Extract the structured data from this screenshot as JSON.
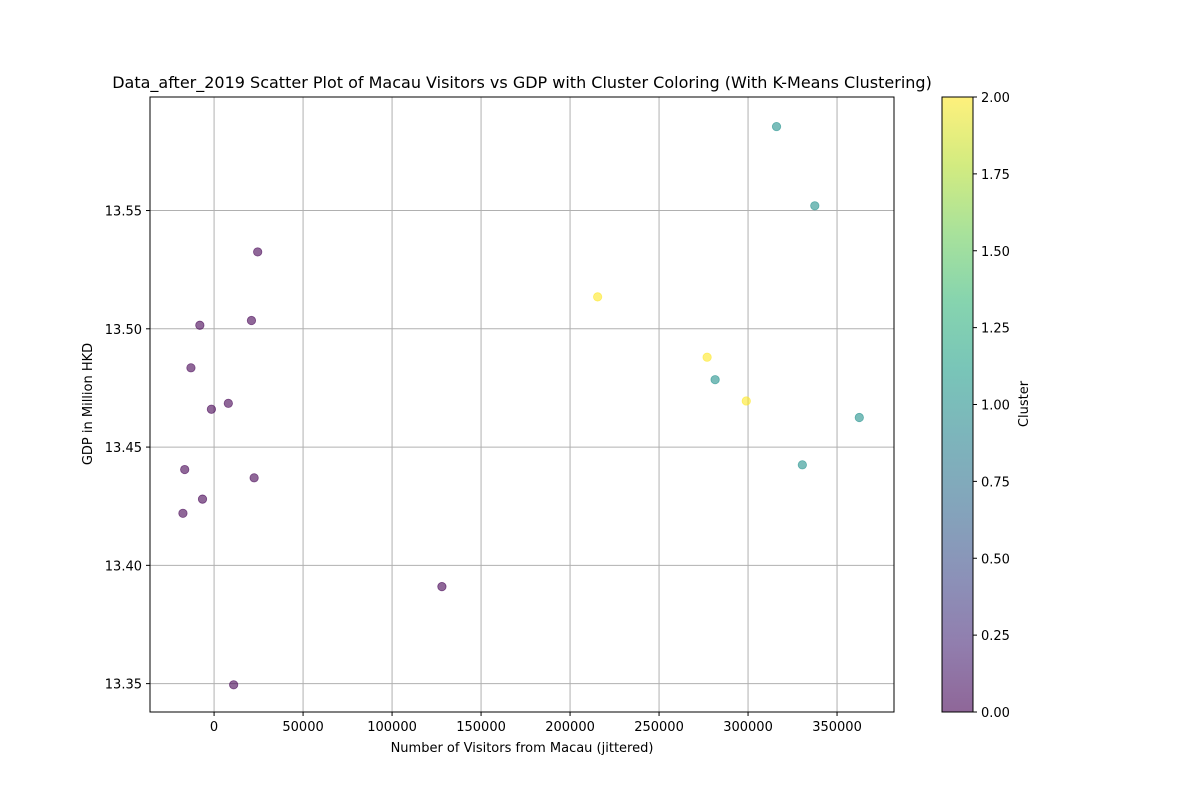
{
  "chart_data": {
    "type": "scatter",
    "title": "Data_after_2019 Scatter Plot of Macau Visitors vs GDP with Cluster Coloring (With K-Means Clustering)",
    "xlabel": "Number of Visitors from Macau (jittered)",
    "ylabel": "GDP in Million HKD",
    "xlim": [
      -36000,
      382000
    ],
    "ylim": [
      13.338,
      13.598
    ],
    "xticks": [
      0,
      50000,
      100000,
      150000,
      200000,
      250000,
      300000,
      350000
    ],
    "xtick_labels": [
      "0",
      "50000",
      "100000",
      "150000",
      "200000",
      "250000",
      "300000",
      "350000"
    ],
    "yticks": [
      13.35,
      13.4,
      13.45,
      13.5,
      13.55
    ],
    "ytick_labels": [
      "13.35",
      "13.40",
      "13.45",
      "13.50",
      "13.55"
    ],
    "grid": true,
    "points": [
      {
        "x": 24500,
        "y": 13.5325,
        "cluster": 0
      },
      {
        "x": -8000,
        "y": 13.5015,
        "cluster": 0
      },
      {
        "x": 21000,
        "y": 13.5035,
        "cluster": 0
      },
      {
        "x": -13000,
        "y": 13.4835,
        "cluster": 0
      },
      {
        "x": 8000,
        "y": 13.4685,
        "cluster": 0
      },
      {
        "x": -1500,
        "y": 13.466,
        "cluster": 0
      },
      {
        "x": -16500,
        "y": 13.4405,
        "cluster": 0
      },
      {
        "x": 22500,
        "y": 13.437,
        "cluster": 0
      },
      {
        "x": -6500,
        "y": 13.428,
        "cluster": 0
      },
      {
        "x": -17500,
        "y": 13.422,
        "cluster": 0
      },
      {
        "x": 128000,
        "y": 13.391,
        "cluster": 0
      },
      {
        "x": 11000,
        "y": 13.3495,
        "cluster": 0
      },
      {
        "x": 316000,
        "y": 13.5855,
        "cluster": 1
      },
      {
        "x": 337500,
        "y": 13.552,
        "cluster": 1
      },
      {
        "x": 281500,
        "y": 13.4785,
        "cluster": 1
      },
      {
        "x": 362500,
        "y": 13.4625,
        "cluster": 1
      },
      {
        "x": 330500,
        "y": 13.4425,
        "cluster": 1
      },
      {
        "x": 215500,
        "y": 13.5135,
        "cluster": 2
      },
      {
        "x": 277000,
        "y": 13.488,
        "cluster": 2
      },
      {
        "x": 299000,
        "y": 13.4695,
        "cluster": 2
      }
    ],
    "cluster_colors": {
      "0": "#440154",
      "1": "#21918c",
      "2": "#fde725"
    },
    "point_alpha": 0.6,
    "colorbar": {
      "label": "Cluster",
      "range": [
        0,
        2
      ],
      "ticks": [
        0,
        0.25,
        0.5,
        0.75,
        1.0,
        1.25,
        1.5,
        1.75,
        2.0
      ],
      "tick_labels": [
        "0.00",
        "0.25",
        "0.50",
        "0.75",
        "1.00",
        "1.25",
        "1.50",
        "1.75",
        "2.00"
      ],
      "colormap": "viridis",
      "colormap_stops": [
        "#440154",
        "#482878",
        "#3e4989",
        "#31688e",
        "#26828e",
        "#1f9e89",
        "#35b779",
        "#6ece58",
        "#b5de2b",
        "#fde725"
      ]
    }
  }
}
